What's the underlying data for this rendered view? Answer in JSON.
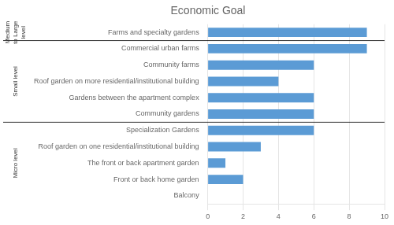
{
  "chart_data": {
    "type": "bar",
    "orientation": "horizontal",
    "title": "Economic Goal",
    "categories": [
      "Balcony",
      "Front or back home garden",
      "The front or back apartment garden",
      "Roof garden on one residential/institutional building",
      "Specialization Gardens",
      "Community gardens",
      "Gardens between the apartment complex",
      "Roof garden on more residential/institutional building",
      "Community farms",
      "Commercial urban farms",
      "Farms and specialty gardens"
    ],
    "values": [
      0,
      2,
      1,
      3,
      6,
      6,
      6,
      4,
      6,
      9,
      9
    ],
    "color": "#5B9BD5",
    "xlim": [
      0,
      10
    ],
    "xticks": [
      0,
      2,
      4,
      6,
      8,
      10
    ],
    "grid": true,
    "groups": [
      {
        "label": "Micro level",
        "size": 5
      },
      {
        "label": "Small level",
        "size": 5
      },
      {
        "label": "Medium\nto Large\nlevel",
        "size": 1
      }
    ]
  }
}
